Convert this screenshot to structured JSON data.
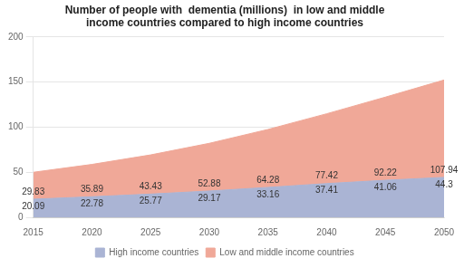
{
  "chart_data": {
    "type": "area",
    "title": "Number of people with  dementia (millions)  in low and middle\nincome countries compared to high income countries",
    "x": [
      2015,
      2020,
      2025,
      2030,
      2035,
      2040,
      2045,
      2050
    ],
    "series": [
      {
        "name": "High income countries",
        "color": "#aab4d4",
        "values": [
          20.09,
          22.78,
          25.77,
          29.17,
          33.16,
          37.41,
          41.06,
          44.3
        ]
      },
      {
        "name": "Low and middle income countries",
        "color": "#f0a898",
        "values": [
          29.83,
          35.89,
          43.43,
          52.88,
          64.28,
          77.42,
          92.22,
          107.94
        ]
      }
    ],
    "stacked": true,
    "data_labels": true,
    "xlim": [
      2015,
      2050
    ],
    "xticks": [
      2015,
      2020,
      2025,
      2030,
      2035,
      2040,
      2045,
      2050
    ],
    "ylim": [
      0,
      200
    ],
    "yticks": [
      0,
      50,
      100,
      150,
      200
    ],
    "grid": "y",
    "legend": "bottom"
  }
}
